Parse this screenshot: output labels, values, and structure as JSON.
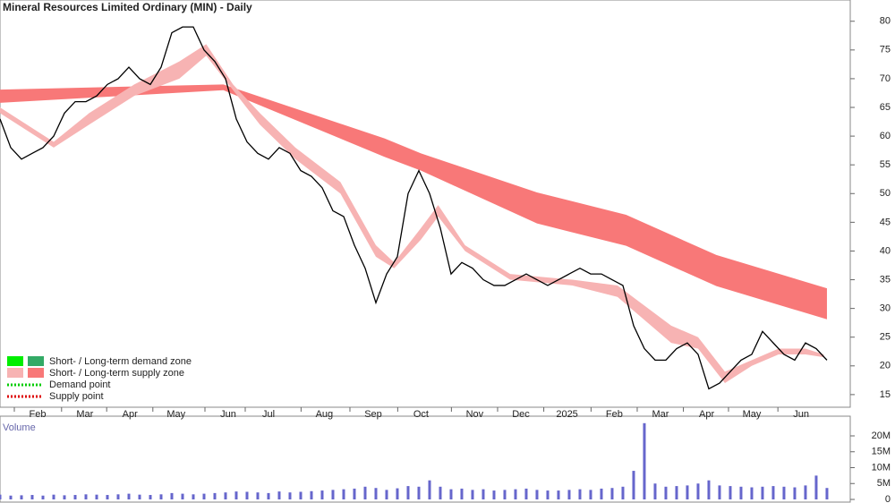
{
  "chart_data": [
    {
      "type": "line",
      "title": "Mineral Resources Limited Ordinary (MIN) - Daily",
      "x": [
        0,
        1,
        2,
        3,
        4,
        5,
        6,
        7,
        8,
        9,
        10,
        11,
        12,
        13,
        14,
        15,
        16,
        17,
        18,
        19,
        20,
        21,
        22,
        23,
        24,
        25,
        26,
        27,
        28,
        29,
        30,
        31,
        32,
        33,
        34,
        35,
        36,
        37,
        38,
        39,
        40,
        41,
        42,
        43,
        44,
        45,
        46,
        47,
        48,
        49,
        50,
        51,
        52,
        53,
        54,
        55,
        56,
        57,
        58,
        59,
        60,
        61,
        62,
        63,
        64,
        65,
        66,
        67,
        68,
        69,
        70,
        71,
        72,
        73,
        74,
        75,
        76,
        77
      ],
      "series": [
        {
          "name": "Price",
          "color": "#000000",
          "values": [
            63,
            58,
            56,
            57,
            58,
            60,
            64,
            66,
            66,
            67,
            69,
            70,
            72,
            70,
            69,
            72,
            78,
            79,
            79,
            75,
            73,
            70,
            63,
            59,
            57,
            56,
            58,
            57,
            54,
            53,
            51,
            47,
            46,
            41,
            37,
            31,
            36,
            39,
            50,
            54,
            50,
            44,
            36,
            38,
            37,
            35,
            34,
            34,
            35,
            36,
            35,
            34,
            35,
            36,
            37,
            36,
            36,
            35,
            34,
            27,
            23,
            21,
            21,
            23,
            24,
            22,
            16,
            17,
            19,
            21,
            22,
            26,
            24,
            22,
            21,
            24,
            23,
            21
          ]
        }
      ],
      "zones": [
        {
          "name": "Short-term zone",
          "color": "#f7b3b3",
          "x": [
            0,
            5,
            8.3,
            12.5,
            16.7,
            19.2,
            21.7,
            24.2,
            27.5,
            31.7,
            35,
            36.7,
            39.2,
            40.8,
            43.3,
            47.5,
            53.3,
            57.5,
            62.5,
            65,
            67.5,
            70,
            72.5,
            75,
            76.7
          ],
          "upper": [
            65,
            59,
            64,
            69,
            73,
            76,
            69,
            64,
            58,
            52,
            41,
            38,
            44,
            48,
            41,
            36,
            35,
            34,
            27,
            25,
            19,
            21,
            23,
            23,
            22
          ],
          "lower": [
            64,
            58,
            62,
            67,
            70,
            74,
            68,
            62,
            56,
            50,
            39,
            37,
            42,
            46,
            40,
            35,
            34,
            32,
            24,
            23,
            17,
            20,
            22,
            22,
            21.5
          ]
        },
        {
          "name": "Long-term zone",
          "color": "#f87878",
          "x": [
            0,
            20.8,
            35.8,
            39.2,
            50,
            58.3,
            66.7,
            77
          ],
          "upper": [
            68.1,
            69,
            59.6,
            57,
            50.2,
            46.3,
            39.3,
            33.5
          ],
          "lower": [
            65.8,
            68,
            56.4,
            54,
            44.8,
            40.9,
            33.9,
            28.1
          ]
        }
      ],
      "xlim": [
        0,
        79.17
      ],
      "xticks": [
        {
          "value": 3.5,
          "label": "Feb"
        },
        {
          "value": 7.9,
          "label": "Mar"
        },
        {
          "value": 12.1,
          "label": "Apr"
        },
        {
          "value": 16.4,
          "label": "May"
        },
        {
          "value": 21.25,
          "label": "Jun"
        },
        {
          "value": 25,
          "label": "Jul"
        },
        {
          "value": 30.2,
          "label": "Aug"
        },
        {
          "value": 34.75,
          "label": "Sep"
        },
        {
          "value": 39.2,
          "label": "Oct"
        },
        {
          "value": 44.2,
          "label": "Nov"
        },
        {
          "value": 48.5,
          "label": "Dec"
        },
        {
          "value": 52.8,
          "label": "2025"
        },
        {
          "value": 57.2,
          "label": "Feb"
        },
        {
          "value": 61.5,
          "label": "Mar"
        },
        {
          "value": 65.8,
          "label": "Apr"
        },
        {
          "value": 70,
          "label": "May"
        },
        {
          "value": 74.6,
          "label": "Jun"
        }
      ],
      "ylim": [
        12.8,
        83.7
      ],
      "yticks": [
        15,
        20,
        25,
        30,
        35,
        40,
        45,
        50,
        55,
        60,
        65,
        70,
        75,
        80
      ],
      "legend": [
        {
          "label": "Short- / Long-term demand zone",
          "colors": [
            "#00ee00",
            "#33aa66"
          ]
        },
        {
          "label": "Short- / Long-term supply zone",
          "colors": [
            "#f7b3b3",
            "#f87878"
          ]
        },
        {
          "label": "Demand point",
          "colors": [
            "#00cc00"
          ]
        },
        {
          "label": "Supply point",
          "colors": [
            "#dd0000"
          ]
        }
      ]
    },
    {
      "type": "bar",
      "title": "Volume",
      "color": "#6666cc",
      "x": [
        0,
        1,
        2,
        3,
        4,
        5,
        6,
        7,
        8,
        9,
        10,
        11,
        12,
        13,
        14,
        15,
        16,
        17,
        18,
        19,
        20,
        21,
        22,
        23,
        24,
        25,
        26,
        27,
        28,
        29,
        30,
        31,
        32,
        33,
        34,
        35,
        36,
        37,
        38,
        39,
        40,
        41,
        42,
        43,
        44,
        45,
        46,
        47,
        48,
        49,
        50,
        51,
        52,
        53,
        54,
        55,
        56,
        57,
        58,
        59,
        60,
        61,
        62,
        63,
        64,
        65,
        66,
        67,
        68,
        69,
        70,
        71,
        72,
        73,
        74,
        75,
        76,
        77
      ],
      "values": [
        1.5,
        1.2,
        1.3,
        1.4,
        1.2,
        1.5,
        1.3,
        1.4,
        1.6,
        1.5,
        1.4,
        1.6,
        1.8,
        1.5,
        1.4,
        1.6,
        2,
        1.8,
        1.6,
        1.8,
        2,
        2.2,
        2.5,
        2.4,
        2.2,
        2,
        2.5,
        2.2,
        2.4,
        2.6,
        2.8,
        3,
        3.2,
        3.4,
        4,
        3.6,
        3,
        3.5,
        4.2,
        4,
        6,
        4,
        3.2,
        3.4,
        3,
        3.2,
        2.8,
        3,
        3.2,
        3.4,
        3,
        2.8,
        2.8,
        3,
        3.2,
        3,
        3.4,
        3.6,
        4,
        9,
        24,
        5,
        4,
        4.2,
        4.4,
        5,
        6,
        4.4,
        4.2,
        4,
        3.8,
        4,
        4.2,
        4,
        3.8,
        4.4,
        7.5,
        3.6
      ],
      "xlim": [
        0,
        79.17
      ],
      "ylim": [
        0,
        26.2
      ],
      "yticks": [
        0,
        {
          "value": 5,
          "label": "5M"
        },
        {
          "value": 10,
          "label": "10M"
        },
        {
          "value": 15,
          "label": "15M"
        },
        {
          "value": 20,
          "label": "20M"
        }
      ]
    }
  ]
}
